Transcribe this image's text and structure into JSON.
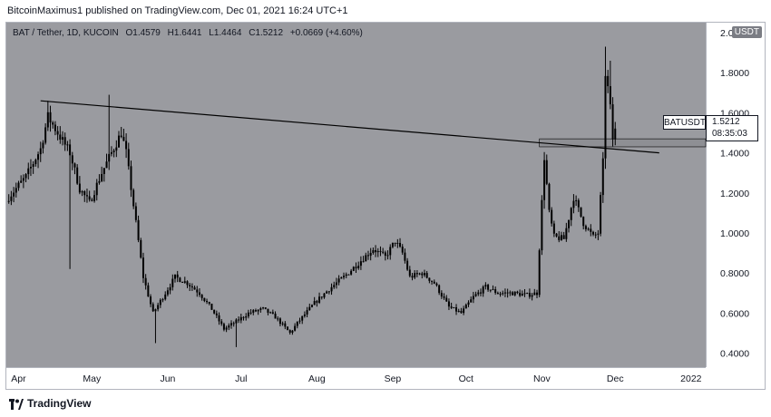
{
  "header": {
    "publish_text": "BitcoinMaximus1 published on TradingView.com, Dec 01, 2021 16:24 UTC+1"
  },
  "legend": {
    "symbol": "BAT / Tether, 1D, KUCOIN",
    "open_label": "O",
    "open": "1.4579",
    "high_label": "H",
    "high": "1.6441",
    "low_label": "L",
    "low": "1.4464",
    "close_label": "C",
    "close": "1.5212",
    "change": "+0.0669 (+4.60%)"
  },
  "currency_badge": "USDT",
  "price_tag": {
    "symbol": "BATUSDT",
    "price": "1.5212",
    "countdown": "08:35:03"
  },
  "footer": {
    "brand": "TradingView"
  },
  "colors": {
    "plot_bg": "#9a9ba0",
    "candle": "#000000",
    "line": "#000000",
    "zone": "#8e8f94"
  },
  "chart_data": {
    "type": "candlestick",
    "title": "BAT / Tether, 1D, KUCOIN",
    "y_ticks": [
      "0.4000",
      "0.6000",
      "0.8000",
      "1.0000",
      "1.2000",
      "1.4000",
      "1.6000",
      "1.8000",
      "2.0000"
    ],
    "x_ticks": [
      "Apr",
      "May",
      "Jun",
      "Jul",
      "Aug",
      "Sep",
      "Oct",
      "Nov",
      "Dec",
      "2022"
    ],
    "ylim": [
      0.33,
      2.05
    ],
    "x_range": [
      "2021-03-27",
      "2022-01-07"
    ],
    "grid": false,
    "close_path": [
      [
        "2021-03-28",
        1.18
      ],
      [
        "2021-04-04",
        1.28
      ],
      [
        "2021-04-10",
        1.42
      ],
      [
        "2021-04-13",
        1.58
      ],
      [
        "2021-04-17",
        1.5
      ],
      [
        "2021-04-22",
        1.4
      ],
      [
        "2021-04-26",
        1.22
      ],
      [
        "2021-04-30",
        1.15
      ],
      [
        "2021-05-05",
        1.3
      ],
      [
        "2021-05-09",
        1.4
      ],
      [
        "2021-05-13",
        1.5
      ],
      [
        "2021-05-15",
        1.4
      ],
      [
        "2021-05-19",
        1.05
      ],
      [
        "2021-05-22",
        0.78
      ],
      [
        "2021-05-26",
        0.6
      ],
      [
        "2021-05-30",
        0.68
      ],
      [
        "2021-06-04",
        0.78
      ],
      [
        "2021-06-09",
        0.75
      ],
      [
        "2021-06-14",
        0.7
      ],
      [
        "2021-06-19",
        0.62
      ],
      [
        "2021-06-24",
        0.52
      ],
      [
        "2021-06-28",
        0.55
      ],
      [
        "2021-07-04",
        0.6
      ],
      [
        "2021-07-10",
        0.62
      ],
      [
        "2021-07-15",
        0.58
      ],
      [
        "2021-07-21",
        0.5
      ],
      [
        "2021-07-24",
        0.55
      ],
      [
        "2021-07-31",
        0.65
      ],
      [
        "2021-08-06",
        0.72
      ],
      [
        "2021-08-12",
        0.78
      ],
      [
        "2021-08-18",
        0.85
      ],
      [
        "2021-08-24",
        0.92
      ],
      [
        "2021-08-29",
        0.88
      ],
      [
        "2021-09-02",
        0.96
      ],
      [
        "2021-09-05",
        0.9
      ],
      [
        "2021-09-08",
        0.78
      ],
      [
        "2021-09-13",
        0.8
      ],
      [
        "2021-09-18",
        0.75
      ],
      [
        "2021-09-24",
        0.63
      ],
      [
        "2021-09-29",
        0.6
      ],
      [
        "2021-10-04",
        0.68
      ],
      [
        "2021-10-09",
        0.73
      ],
      [
        "2021-10-14",
        0.7
      ],
      [
        "2021-10-20",
        0.7
      ],
      [
        "2021-10-26",
        0.69
      ],
      [
        "2021-10-30",
        0.7
      ],
      [
        "2021-11-02",
        1.38
      ],
      [
        "2021-11-04",
        1.1
      ],
      [
        "2021-11-06",
        0.98
      ],
      [
        "2021-11-10",
        0.97
      ],
      [
        "2021-11-14",
        1.18
      ],
      [
        "2021-11-18",
        1.05
      ],
      [
        "2021-11-22",
        0.98
      ],
      [
        "2021-11-24",
        1.0
      ],
      [
        "2021-11-26",
        1.35
      ],
      [
        "2021-11-27",
        1.8
      ],
      [
        "2021-11-28",
        1.72
      ],
      [
        "2021-11-29",
        1.62
      ],
      [
        "2021-11-30",
        1.47
      ],
      [
        "2021-12-01",
        1.52
      ]
    ],
    "trendline": {
      "start": [
        "2021-04-10",
        1.66
      ],
      "end": [
        "2021-12-19",
        1.4
      ]
    },
    "resistance_zone": {
      "start": "2021-10-31",
      "end": "2022-01-07",
      "low": 1.43,
      "high": 1.47
    },
    "last_price": 1.5212
  }
}
